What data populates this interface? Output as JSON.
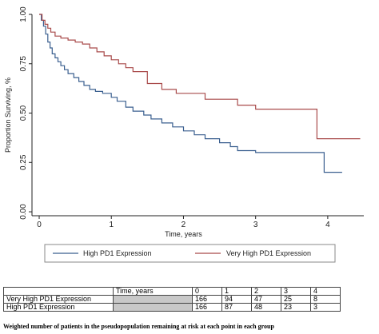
{
  "chart_data": {
    "type": "line",
    "subtype": "kaplan-meier",
    "title": "",
    "xlabel": "Time, years",
    "ylabel": "Proportion Surviving, %",
    "xlim": [
      -0.1,
      4.5
    ],
    "ylim": [
      -0.02,
      1.0
    ],
    "xticks": [
      "0",
      "1",
      "2",
      "3",
      "4"
    ],
    "yticks": [
      "0.00",
      "0.25",
      "0.50",
      "0.75",
      "1.00"
    ],
    "grid": false,
    "legend_position": "bottom",
    "series": [
      {
        "name": "High PD1 Expression",
        "color": "#3a5f8f",
        "x": [
          0,
          0.03,
          0.06,
          0.09,
          0.12,
          0.15,
          0.18,
          0.22,
          0.26,
          0.3,
          0.35,
          0.4,
          0.48,
          0.55,
          0.62,
          0.7,
          0.78,
          0.88,
          1.0,
          1.08,
          1.2,
          1.3,
          1.45,
          1.55,
          1.7,
          1.85,
          2.0,
          2.15,
          2.3,
          2.5,
          2.65,
          2.75,
          3.0,
          3.2,
          3.4,
          3.6,
          3.8,
          3.95,
          4.2
        ],
        "y": [
          1.0,
          0.97,
          0.94,
          0.9,
          0.86,
          0.83,
          0.8,
          0.78,
          0.76,
          0.74,
          0.72,
          0.7,
          0.68,
          0.66,
          0.64,
          0.62,
          0.61,
          0.6,
          0.58,
          0.56,
          0.53,
          0.51,
          0.49,
          0.47,
          0.45,
          0.43,
          0.41,
          0.39,
          0.37,
          0.35,
          0.33,
          0.31,
          0.3,
          0.3,
          0.3,
          0.3,
          0.3,
          0.2,
          0.2
        ]
      },
      {
        "name": "Very High PD1 Expression",
        "color": "#a94b4b",
        "x": [
          0,
          0.04,
          0.08,
          0.12,
          0.16,
          0.22,
          0.3,
          0.4,
          0.5,
          0.6,
          0.7,
          0.8,
          0.9,
          1.0,
          1.1,
          1.2,
          1.3,
          1.5,
          1.7,
          1.9,
          2.1,
          2.3,
          2.5,
          2.75,
          3.0,
          3.3,
          3.6,
          3.85,
          4.45
        ],
        "y": [
          1.0,
          0.97,
          0.95,
          0.93,
          0.91,
          0.89,
          0.88,
          0.87,
          0.86,
          0.85,
          0.83,
          0.81,
          0.79,
          0.77,
          0.75,
          0.73,
          0.71,
          0.65,
          0.62,
          0.6,
          0.6,
          0.57,
          0.57,
          0.54,
          0.52,
          0.52,
          0.52,
          0.37,
          0.37
        ]
      }
    ],
    "risk_table": {
      "header_label": "Time, years",
      "times": [
        "0",
        "1",
        "2",
        "3",
        "4"
      ],
      "rows": [
        {
          "label": "Very High PD1 Expression",
          "values": [
            "166",
            "94",
            "47",
            "25",
            "8"
          ]
        },
        {
          "label": "High PD1 Expression",
          "values": [
            "166",
            "87",
            "48",
            "23",
            "3"
          ]
        }
      ]
    },
    "caption": "Weighted number of patients in the pseudopopulation remaining at risk at each point in each group"
  }
}
